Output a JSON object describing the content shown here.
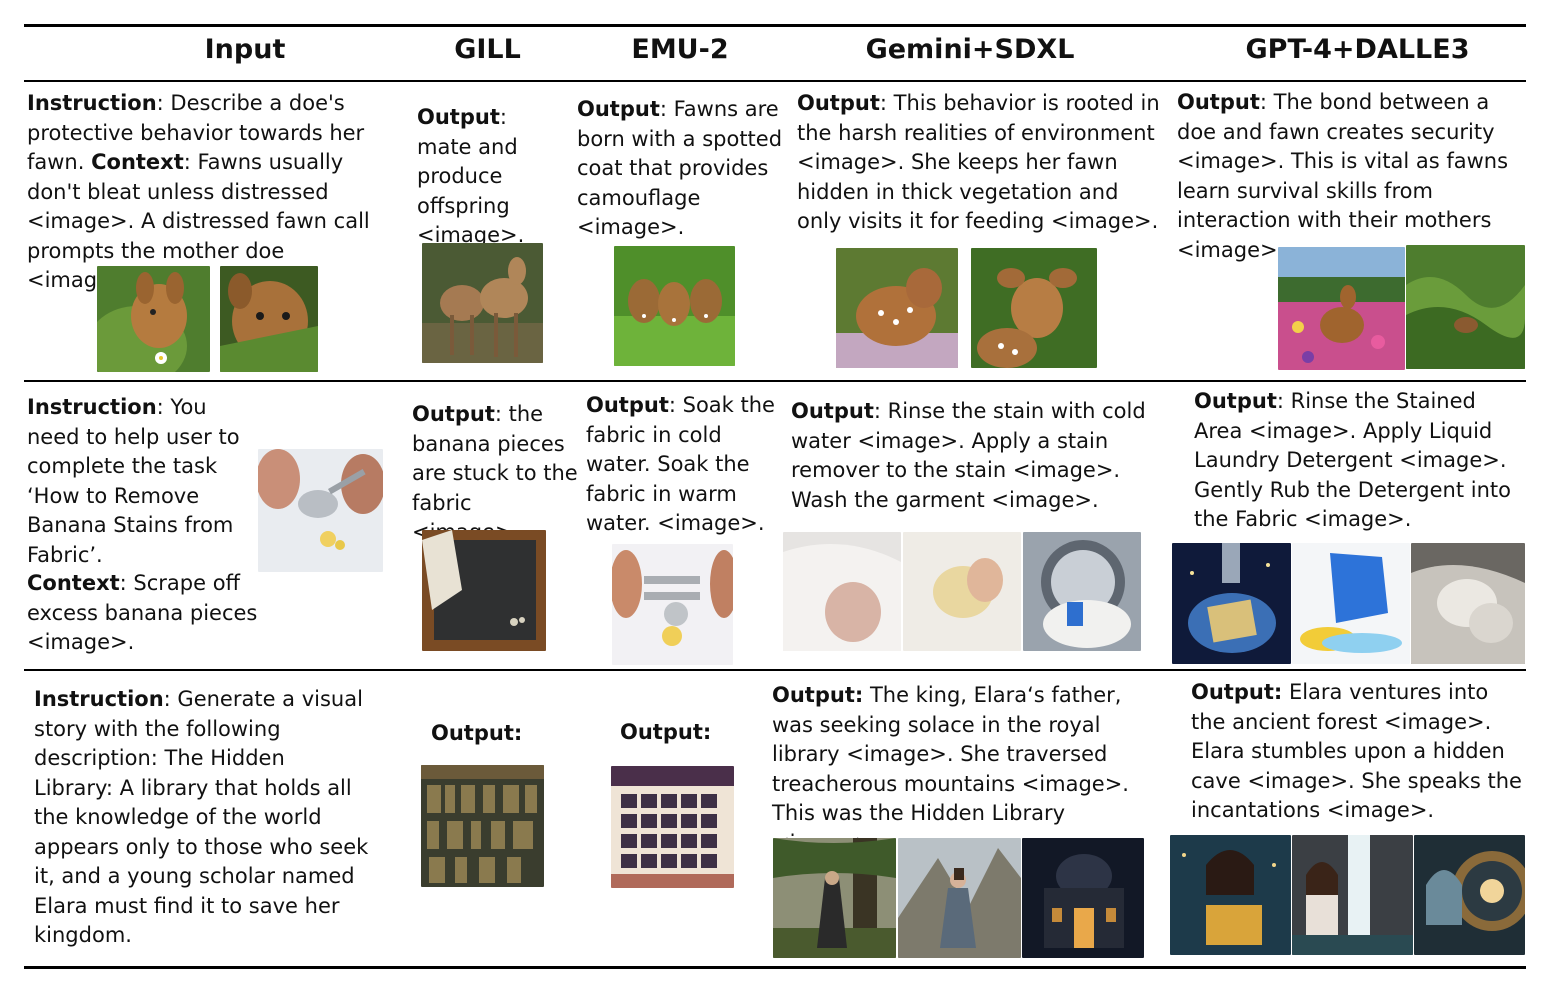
{
  "headers": [
    "Input",
    "GILL",
    "EMU-2",
    "Gemini+SDXL",
    "GPT-4+DALLE3"
  ],
  "labels": {
    "instruction": "Instruction",
    "context": "Context",
    "output": "Output",
    "output_colon": "Output:"
  },
  "rows": [
    {
      "input": {
        "instruction_text": ": Describe a doe's protective behavior towards her fawn. ",
        "context_text": ": Fawns usually don't bleat unless distressed <image>. A distressed fawn call prompts the mother doe <image>."
      },
      "gill": ": mate and produce offspring <image>.",
      "emu2": ": Fawns are born with a spotted coat that provides camouflage <image>.",
      "gemini": ": This behavior is rooted in the harsh realities of environment <image>. She keeps her fawn hidden in thick vegetation and only visits it for feeding <image>.",
      "gpt4": ": The bond between a doe and fawn creates security <image>. This is vital as fawns learn survival skills from interaction with their mothers <image>."
    },
    {
      "input": {
        "instruction_text": ": You need to help user to complete the task ‘How to Remove Banana Stains from Fabric’.",
        "context_text": ": Scrape off excess banana pieces <image>."
      },
      "gill": ": the banana pieces are stuck to the fabric <image>.",
      "emu2": ": Soak the fabric in cold water. Soak the fabric in warm water. <image>.",
      "gemini": ": Rinse the stain with cold water <image>. Apply a stain remover to the stain <image>. Wash the garment <image>.",
      "gpt4": ": Rinse the Stained Area <image>. Apply Liquid Laundry Detergent <image>. Gently Rub the Detergent into the Fabric <image>."
    },
    {
      "input": {
        "instruction_text": ": Generate a visual story with the following description: The Hidden Library: A library that holds all the knowledge of the world appears only to those who seek it, and a young scholar named Elara must find it to save her kingdom."
      },
      "gemini": " The king, Elara‘s father, was seeking solace in the royal library <image>. She traversed treacherous mountains <image>. This was the Hidden Library <image>.",
      "gpt4": " Elara ventures into the ancient forest <image>. Elara stumbles upon a hidden cave <image>. She speaks the incantations <image>."
    }
  ]
}
